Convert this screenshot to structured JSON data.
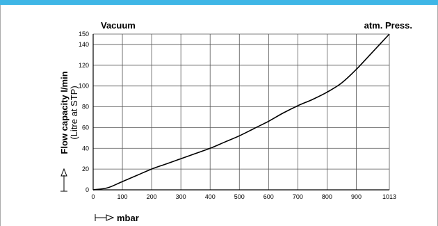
{
  "chart_data": {
    "type": "line",
    "title_left": "Vacuum",
    "title_right": "atm. Press.",
    "ylabel_main": "Flow capacity l/min",
    "ylabel_sub": "(Litre at STP)",
    "xlabel": "mbar",
    "x_ticks": [
      0,
      100,
      200,
      300,
      400,
      500,
      600,
      700,
      800,
      900,
      1013
    ],
    "y_ticks": [
      0,
      20,
      40,
      60,
      80,
      100,
      120,
      140,
      150
    ],
    "xlim": [
      0,
      1013
    ],
    "ylim": [
      0,
      150
    ],
    "grid": true,
    "series": [
      {
        "x": [
          0,
          50,
          100,
          150,
          200,
          250,
          300,
          350,
          400,
          450,
          500,
          550,
          600,
          650,
          700,
          750,
          800,
          850,
          900,
          950,
          1013
        ],
        "y": [
          0,
          2,
          8,
          14,
          20,
          25,
          30,
          35,
          40,
          46,
          52,
          59,
          66,
          74,
          81,
          87,
          94,
          103,
          116,
          131,
          150
        ]
      }
    ]
  }
}
